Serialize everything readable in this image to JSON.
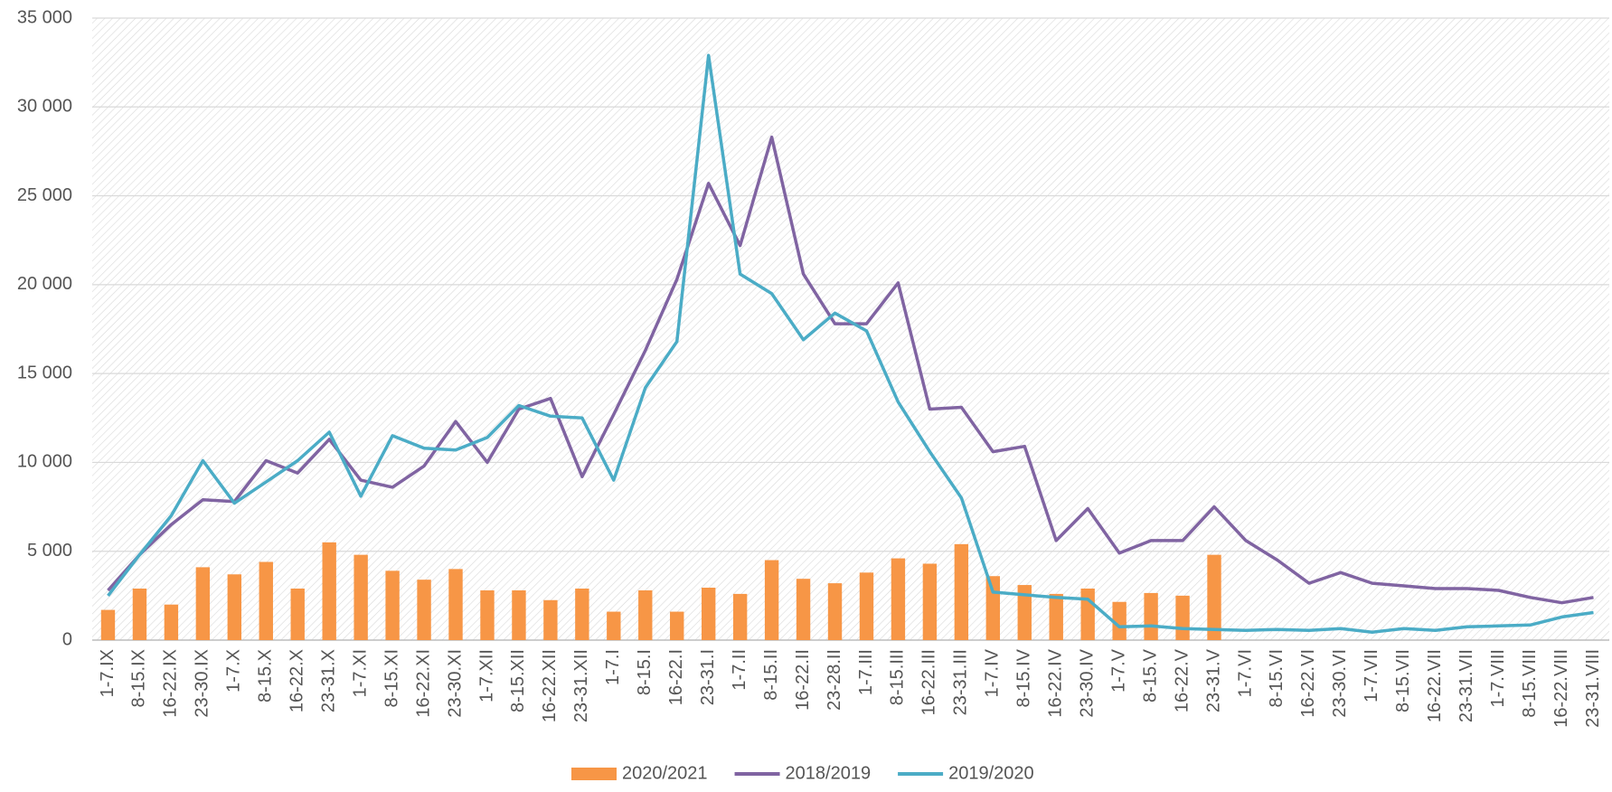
{
  "chart_data": {
    "type": "bar",
    "categories": [
      "1-7.IX",
      "8-15.IX",
      "16-22.IX",
      "23-30.IX",
      "1-7.X",
      "8-15.X",
      "16-22.X",
      "23-31.X",
      "1-7.XI",
      "8-15.XI",
      "16-22.XI",
      "23-30.XI",
      "1-7.XII",
      "8-15.XII",
      "16-22.XII",
      "23-31.XII",
      "1-7.I",
      "8-15.I",
      "16-22.I",
      "23-31.I",
      "1-7.II",
      "8-15.II",
      "16-22.II",
      "23-28.II",
      "1-7.III",
      "8-15.III",
      "16-22.III",
      "23-31.III",
      "1-7.IV",
      "8-15.IV",
      "16-22.IV",
      "23-30.IV",
      "1-7.V",
      "8-15.V",
      "16-22.V",
      "23-31.V",
      "1-7.VI",
      "8-15.VI",
      "16-22.VI",
      "23-30.VI",
      "1-7.VII",
      "8-15.VII",
      "16-22.VII",
      "23-31.VII",
      "1-7.VIII",
      "8-15.VIII",
      "16-22.VIII",
      "23-31.VIII"
    ],
    "series": [
      {
        "name": "2020/2021",
        "type": "bar",
        "color": "#f79646",
        "values": [
          1700,
          2900,
          2000,
          4100,
          3700,
          4400,
          2900,
          5500,
          4800,
          3900,
          3400,
          4000,
          2800,
          2800,
          2250,
          2900,
          1600,
          2800,
          1600,
          2950,
          2600,
          4500,
          3450,
          3200,
          3800,
          4600,
          4300,
          5400,
          3600,
          3100,
          2600,
          2900,
          2150,
          2650,
          2500,
          4800,
          null,
          null,
          null,
          null,
          null,
          null,
          null,
          null,
          null,
          null,
          null,
          null
        ]
      },
      {
        "name": "2018/2019",
        "type": "line",
        "color": "#8064a2",
        "values": [
          2800,
          4800,
          6500,
          7900,
          7800,
          10100,
          9400,
          11300,
          9000,
          8600,
          9800,
          12300,
          10000,
          13000,
          13600,
          9200,
          12700,
          16300,
          20300,
          25700,
          22200,
          28300,
          20600,
          17800,
          17800,
          20100,
          13000,
          13100,
          10600,
          10900,
          5600,
          7400,
          4900,
          5600,
          5600,
          7500,
          5600,
          4500,
          3200,
          3800,
          3200,
          3050,
          2900,
          2900,
          2800,
          2400,
          2100,
          2400
        ]
      },
      {
        "name": "2019/2020",
        "type": "line",
        "color": "#4bacc6",
        "values": [
          2500,
          4800,
          7000,
          10100,
          7700,
          8900,
          10100,
          11700,
          8100,
          11500,
          10800,
          10700,
          11400,
          13200,
          12600,
          12500,
          9000,
          14200,
          16800,
          32900,
          20600,
          19500,
          16900,
          18400,
          17400,
          13400,
          10600,
          8000,
          2700,
          2550,
          2400,
          2300,
          750,
          800,
          650,
          600,
          550,
          600,
          550,
          650,
          450,
          650,
          550,
          750,
          800,
          850,
          1300,
          1550
        ]
      }
    ],
    "ylim": [
      0,
      35000
    ],
    "yticks": [
      0,
      {
        "value": 5000,
        "label": "5 000"
      },
      {
        "value": 10000,
        "label": "10 000"
      },
      {
        "value": 15000,
        "label": "15 000"
      },
      {
        "value": 20000,
        "label": "20 000"
      },
      {
        "value": 25000,
        "label": "25 000"
      },
      {
        "value": 30000,
        "label": "30 000"
      },
      {
        "value": 35000,
        "label": "35 000"
      }
    ],
    "grid": true
  }
}
